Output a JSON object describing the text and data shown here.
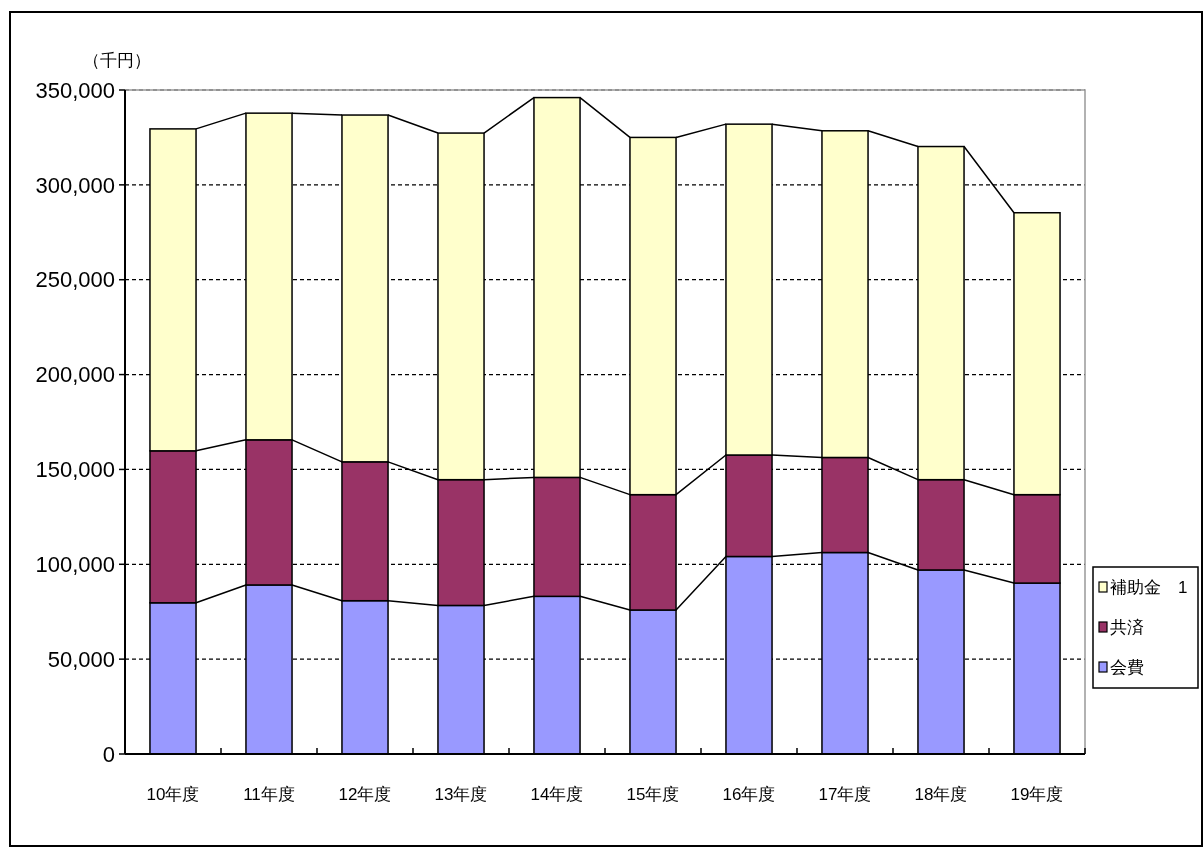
{
  "chart_data": {
    "type": "bar",
    "stacked": true,
    "ylabel": "（千円）",
    "categories": [
      "10年度",
      "11年度",
      "12年度",
      "13年度",
      "14年度",
      "15年度",
      "16年度",
      "17年度",
      "18年度",
      "19年度"
    ],
    "series": [
      {
        "name": "会費",
        "color": "#9999ff",
        "values": [
          79700,
          89100,
          80800,
          78300,
          83100,
          75900,
          104100,
          106200,
          97000,
          90100
        ]
      },
      {
        "name": "共済",
        "color": "#993366",
        "values": [
          80100,
          76500,
          73200,
          66300,
          62700,
          60800,
          53500,
          50100,
          47600,
          46600
        ]
      },
      {
        "name": "補助金　1",
        "color": "#ffffcc",
        "values": [
          169700,
          172200,
          182800,
          182700,
          200200,
          188300,
          174400,
          172200,
          175600,
          148600
        ]
      }
    ],
    "ylim": [
      0,
      350000
    ],
    "yticks": [
      {
        "value": 0,
        "label": "0"
      },
      {
        "value": 50000,
        "label": "50,000"
      },
      {
        "value": 100000,
        "label": "100,000"
      },
      {
        "value": 150000,
        "label": "150,000"
      },
      {
        "value": 200000,
        "label": "200,000"
      },
      {
        "value": 250000,
        "label": "250,000"
      },
      {
        "value": 300000,
        "label": "300,000"
      },
      {
        "value": 350000,
        "label": "350,000"
      }
    ],
    "grid": "y",
    "legend": "right"
  }
}
